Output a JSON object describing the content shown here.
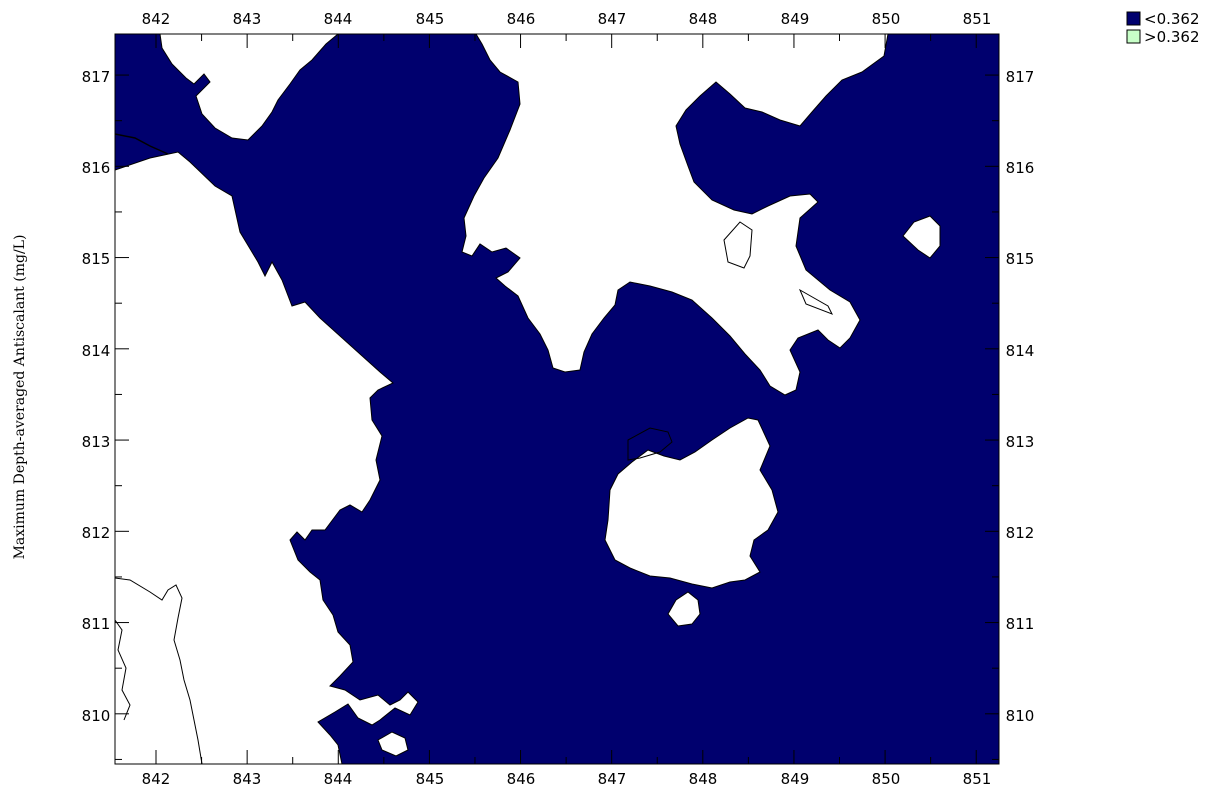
{
  "map": {
    "y_axis_label": "Maximum Depth-averaged Antiscalant (mg/L)",
    "x_ticks": [
      "842",
      "843",
      "844",
      "845",
      "846",
      "847",
      "848",
      "849",
      "850",
      "851"
    ],
    "y_ticks": [
      "817",
      "816",
      "815",
      "814",
      "813",
      "812",
      "811",
      "810"
    ],
    "x_range": [
      841.55,
      851.25
    ],
    "y_range": [
      809.45,
      817.45
    ],
    "water_color": "#00006e",
    "land_color": "#ffffff",
    "coastline_color": "#000000"
  },
  "legend": {
    "items": [
      {
        "label": "<0.362",
        "color": "#00006e"
      },
      {
        "label": ">0.362",
        "color": "#c8ffc8"
      }
    ]
  }
}
